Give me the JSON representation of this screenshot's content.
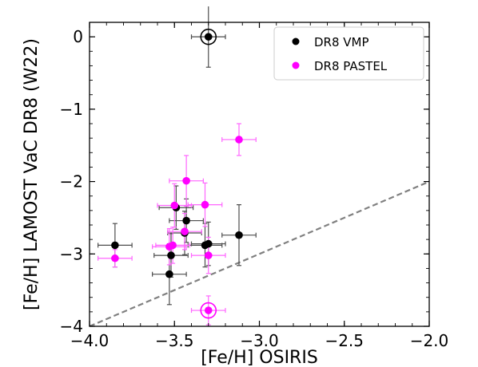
{
  "chart_data": {
    "type": "scatter",
    "xlabel": "[Fe/H] OSIRIS",
    "ylabel": "[Fe/H] LAMOST VaC DR8 (W22)",
    "xlim": [
      -4.0,
      -2.0
    ],
    "ylim": [
      -4.0,
      0.2
    ],
    "x_ticks": [
      -4.0,
      -3.5,
      -3.0,
      -2.5,
      -2.0
    ],
    "x_tick_labels": [
      "−4.0",
      "−3.5",
      "−3.0",
      "−2.5",
      "−2.0"
    ],
    "y_ticks": [
      -4,
      -3,
      -2,
      -1,
      0
    ],
    "y_tick_labels": [
      "−4",
      "−3",
      "−2",
      "−1",
      "0"
    ],
    "grid": false,
    "legend_position": "top-right",
    "reference_line": {
      "style": "dashed",
      "color": "#808080",
      "x": [
        -4.0,
        -2.0
      ],
      "y": [
        -4.0,
        -2.0
      ]
    },
    "series": [
      {
        "name": "DR8 VMP",
        "color": "#000000",
        "points": [
          {
            "x": -3.3,
            "y": 0.0,
            "xerr": 0.1,
            "yerr": 0.42,
            "circled": true
          },
          {
            "x": -3.85,
            "y": -2.88,
            "xerr": 0.1,
            "yerr": 0.3
          },
          {
            "x": -3.53,
            "y": -3.28,
            "xerr": 0.1,
            "yerr": 0.42
          },
          {
            "x": -3.52,
            "y": -3.02,
            "xerr": 0.1,
            "yerr": 0.3
          },
          {
            "x": -3.49,
            "y": -2.36,
            "xerr": 0.1,
            "yerr": 0.3
          },
          {
            "x": -3.43,
            "y": -2.54,
            "xerr": 0.1,
            "yerr": 0.3
          },
          {
            "x": -3.44,
            "y": -2.71,
            "xerr": 0.1,
            "yerr": 0.3
          },
          {
            "x": -3.32,
            "y": -2.88,
            "xerr": 0.1,
            "yerr": 0.3
          },
          {
            "x": -3.3,
            "y": -2.86,
            "xerr": 0.1,
            "yerr": 0.3
          },
          {
            "x": -3.12,
            "y": -2.74,
            "xerr": 0.1,
            "yerr": 0.42
          }
        ]
      },
      {
        "name": "DR8 PASTEL",
        "color": "#ff00ff",
        "points": [
          {
            "x": -3.3,
            "y": -3.78,
            "xerr": 0.1,
            "yerr": 0.2,
            "circled": true
          },
          {
            "x": -3.85,
            "y": -3.06,
            "xerr": 0.1,
            "yerr": 0.12
          },
          {
            "x": -3.53,
            "y": -2.9,
            "xerr": 0.1,
            "yerr": 0.25
          },
          {
            "x": -3.51,
            "y": -2.88,
            "xerr": 0.1,
            "yerr": 0.25
          },
          {
            "x": -3.5,
            "y": -2.33,
            "xerr": 0.1,
            "yerr": 0.3
          },
          {
            "x": -3.43,
            "y": -1.99,
            "xerr": 0.1,
            "yerr": 0.35
          },
          {
            "x": -3.44,
            "y": -2.69,
            "xerr": 0.1,
            "yerr": 0.25
          },
          {
            "x": -3.32,
            "y": -2.32,
            "xerr": 0.1,
            "yerr": 0.3
          },
          {
            "x": -3.3,
            "y": -3.02,
            "xerr": 0.1,
            "yerr": 0.25
          },
          {
            "x": -3.12,
            "y": -1.42,
            "xerr": 0.1,
            "yerr": 0.22
          }
        ]
      }
    ]
  }
}
